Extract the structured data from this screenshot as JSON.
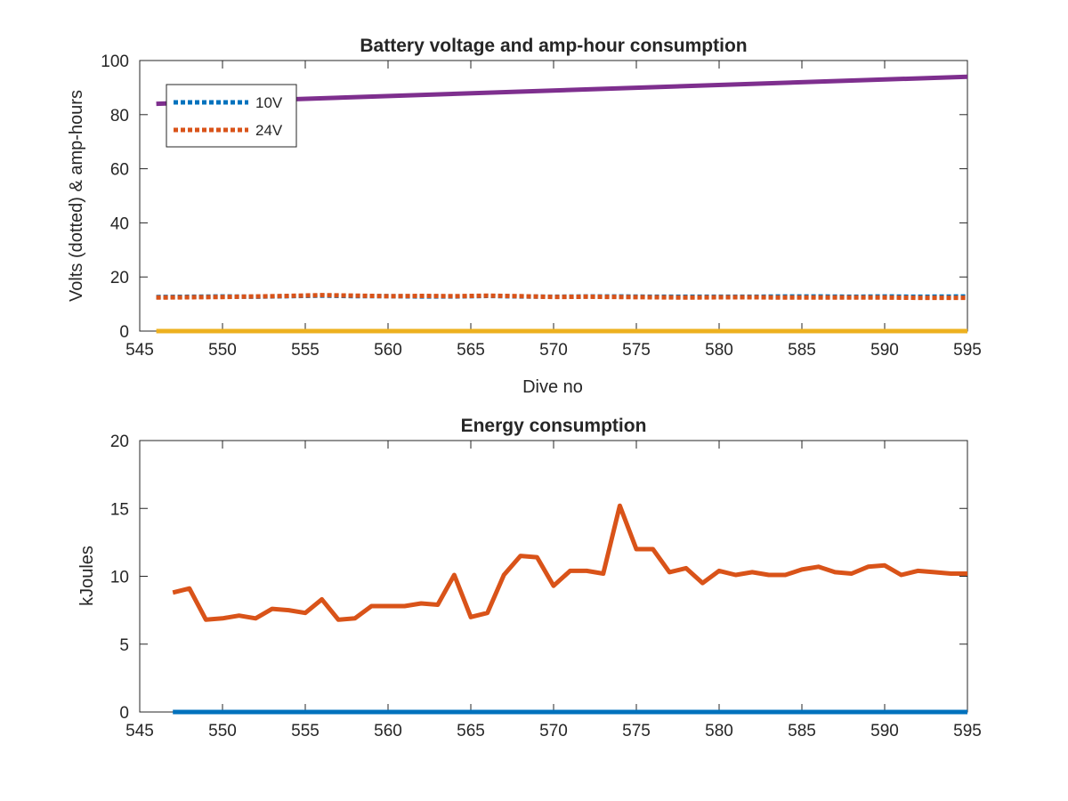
{
  "chart_data": [
    {
      "type": "line",
      "title": "Battery voltage and amp-hour consumption",
      "xlabel": "Dive no",
      "ylabel": "Volts (dotted) & amp-hours",
      "xlim": [
        545,
        595
      ],
      "ylim": [
        0,
        100
      ],
      "xticks": [
        "545",
        "550",
        "555",
        "560",
        "565",
        "570",
        "575",
        "580",
        "585",
        "590",
        "595"
      ],
      "yticks": [
        "0",
        "20",
        "40",
        "60",
        "80",
        "100"
      ],
      "legend": {
        "placement": "top-left",
        "entries": [
          "10V",
          "24V"
        ]
      },
      "grid": false,
      "series": [
        {
          "name": "10V",
          "style": "dotted",
          "color": "#0072BD",
          "x": [
            546,
            548,
            550,
            552,
            554,
            556,
            558,
            560,
            562,
            564,
            566,
            568,
            570,
            572,
            574,
            576,
            578,
            580,
            582,
            584,
            586,
            588,
            590,
            592,
            595
          ],
          "y": [
            12.6,
            12.7,
            12.8,
            12.7,
            12.9,
            13.1,
            12.9,
            12.9,
            12.8,
            12.8,
            13.0,
            12.8,
            12.7,
            12.8,
            12.8,
            12.7,
            12.7,
            12.7,
            12.7,
            12.8,
            12.8,
            12.7,
            12.8,
            12.7,
            12.8
          ]
        },
        {
          "name": "24V",
          "style": "dotted",
          "color": "#D95319",
          "x": [
            546,
            548,
            550,
            552,
            554,
            556,
            558,
            560,
            562,
            564,
            566,
            568,
            570,
            572,
            574,
            576,
            578,
            580,
            582,
            584,
            586,
            588,
            590,
            592,
            595
          ],
          "y": [
            12.4,
            12.5,
            12.6,
            12.8,
            13.0,
            13.3,
            13.1,
            12.9,
            13.0,
            12.9,
            13.1,
            12.9,
            12.6,
            12.7,
            12.6,
            12.5,
            12.4,
            12.5,
            12.5,
            12.4,
            12.4,
            12.4,
            12.4,
            12.3,
            12.3
          ]
        },
        {
          "style": "solid",
          "color": "#EDB120",
          "x": [
            546,
            595
          ],
          "y": [
            0,
            0
          ]
        },
        {
          "style": "solid",
          "color": "#7E2F8E",
          "x": [
            546,
            595
          ],
          "y": [
            84,
            94
          ]
        }
      ]
    },
    {
      "type": "line",
      "title": "Energy consumption",
      "xlabel": "",
      "ylabel": "kJoules",
      "xlim": [
        545,
        595
      ],
      "ylim": [
        0,
        20
      ],
      "xticks": [
        "545",
        "550",
        "555",
        "560",
        "565",
        "570",
        "575",
        "580",
        "585",
        "590",
        "595"
      ],
      "yticks": [
        "0",
        "5",
        "10",
        "15",
        "20"
      ],
      "grid": false,
      "series": [
        {
          "style": "solid",
          "color": "#D95319",
          "x": [
            547,
            548,
            549,
            550,
            551,
            552,
            553,
            554,
            555,
            556,
            557,
            558,
            559,
            560,
            561,
            562,
            563,
            564,
            565,
            566,
            567,
            568,
            569,
            570,
            571,
            572,
            573,
            574,
            575,
            576,
            577,
            578,
            579,
            580,
            581,
            582,
            583,
            584,
            585,
            586,
            587,
            588,
            589,
            590,
            591,
            592,
            593,
            594,
            595
          ],
          "y": [
            8.8,
            9.1,
            6.8,
            6.9,
            7.1,
            6.9,
            7.6,
            7.5,
            7.3,
            8.3,
            6.8,
            6.9,
            7.8,
            7.8,
            7.8,
            8.0,
            7.9,
            10.1,
            7.0,
            7.3,
            10.1,
            11.5,
            11.4,
            9.3,
            10.4,
            10.4,
            10.2,
            15.2,
            12.0,
            12.0,
            10.3,
            10.6,
            9.5,
            10.4,
            10.1,
            10.3,
            10.1,
            10.1,
            10.5,
            10.7,
            10.3,
            10.2,
            10.7,
            10.8,
            10.1,
            10.4,
            10.3,
            10.2,
            10.2
          ]
        },
        {
          "style": "solid",
          "color": "#0072BD",
          "x": [
            547,
            595
          ],
          "y": [
            0,
            0
          ]
        }
      ]
    }
  ]
}
